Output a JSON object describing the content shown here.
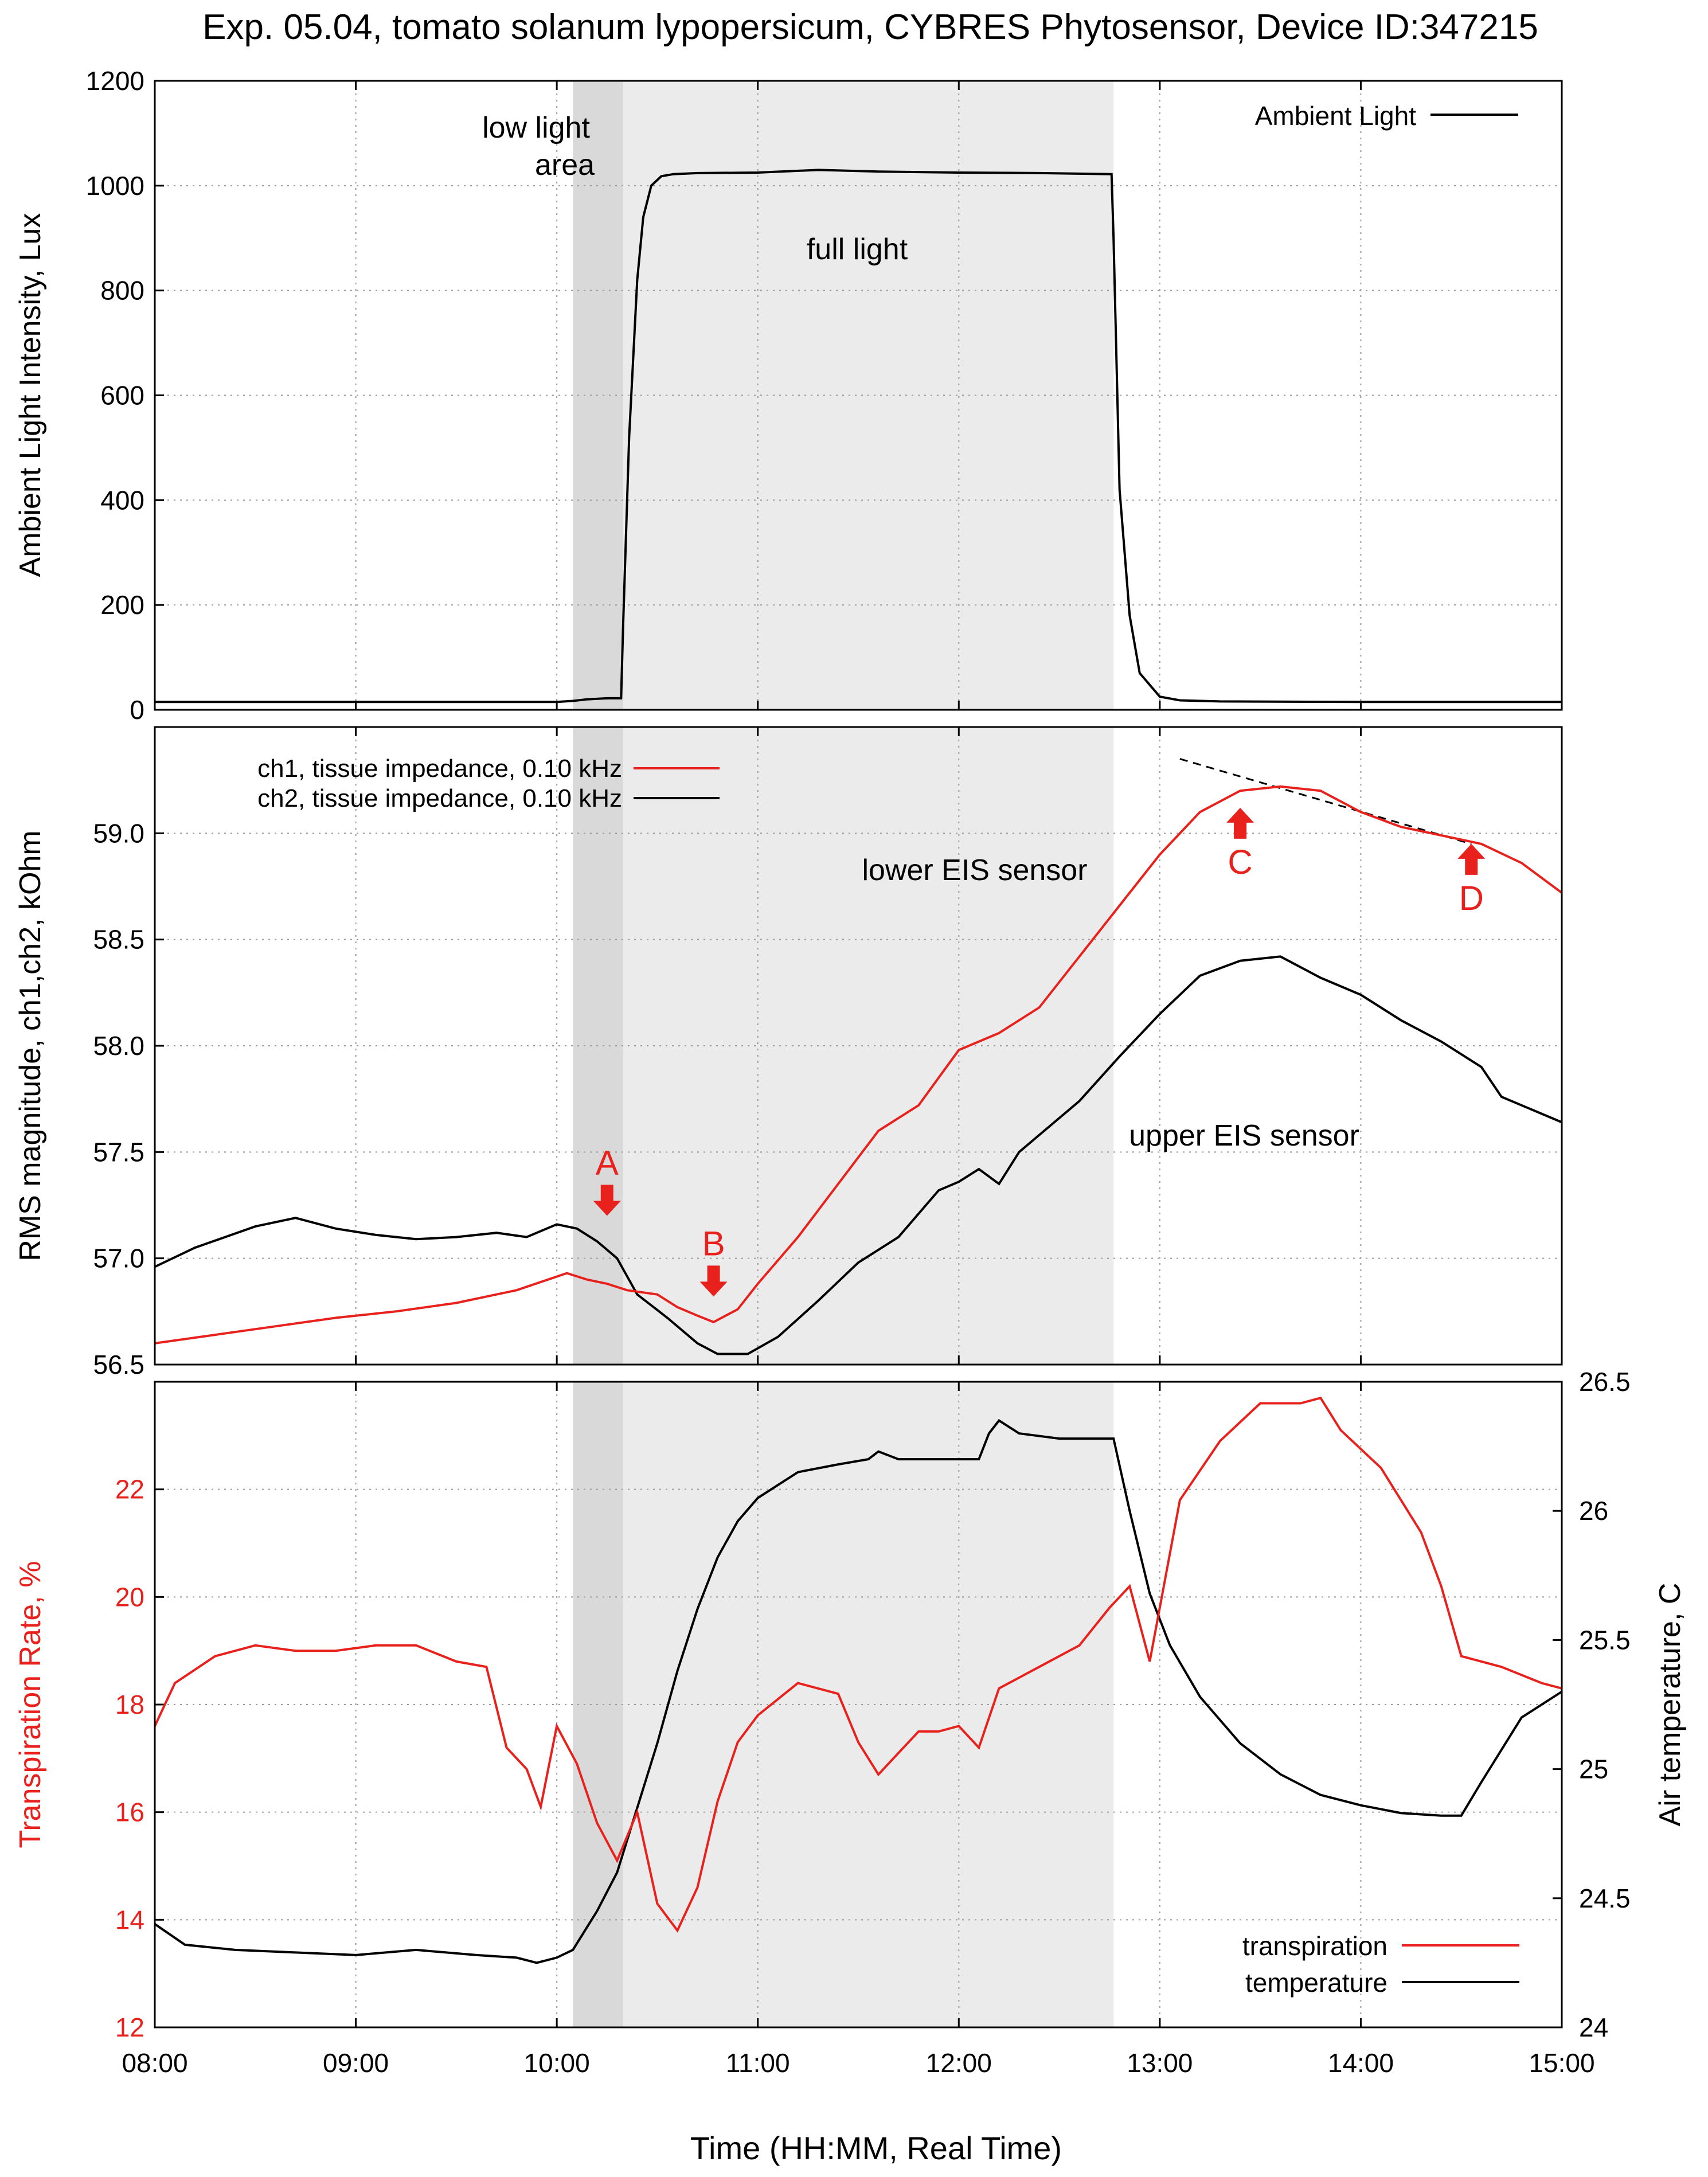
{
  "title": "Exp. 05.04, tomato solanum lypopersicum, CYBRES Phytosensor, Device ID:347215",
  "xlabel": "Time (HH:MM, Real Time)",
  "x_ticks": [
    "08:00",
    "09:00",
    "10:00",
    "11:00",
    "12:00",
    "13:00",
    "14:00",
    "15:00"
  ],
  "shading": {
    "low_light": {
      "from": 10.08,
      "to": 10.33,
      "color": "#d9d9d9"
    },
    "full_light": {
      "from": 10.33,
      "to": 12.77,
      "color": "#ebebeb"
    }
  },
  "chart_data": [
    {
      "type": "line",
      "ylabel": "Ambient Light Intensity, Lux",
      "xlim": [
        8,
        15
      ],
      "ylim": [
        0,
        1200
      ],
      "y_ticks": [
        "0",
        "200",
        "400",
        "600",
        "800",
        "1000",
        "1200"
      ],
      "annotations": {
        "low_light": "low light",
        "area": "area",
        "full_light": "full light"
      },
      "series": [
        {
          "name": "Ambient Light",
          "color": "#000000",
          "x": [
            8.0,
            10.0,
            10.08,
            10.15,
            10.25,
            10.32,
            10.33,
            10.36,
            10.4,
            10.43,
            10.47,
            10.52,
            10.58,
            10.7,
            11.0,
            11.3,
            11.6,
            12.0,
            12.4,
            12.76,
            12.77,
            12.8,
            12.85,
            12.9,
            13.0,
            13.1,
            13.3,
            14.0,
            15.0
          ],
          "y": [
            15,
            15,
            17,
            20,
            22,
            22,
            160,
            520,
            820,
            940,
            1000,
            1018,
            1022,
            1024,
            1025,
            1030,
            1027,
            1025,
            1024,
            1022,
            900,
            420,
            180,
            70,
            25,
            18,
            16,
            15,
            15
          ]
        }
      ]
    },
    {
      "type": "line",
      "ylabel": "RMS magnitude, ch1,ch2, kOhm",
      "xlim": [
        8,
        15
      ],
      "ylim": [
        56.5,
        59.5
      ],
      "y_ticks": [
        "56.5",
        "57.0",
        "57.5",
        "58.0",
        "58.5",
        "59.0"
      ],
      "annotations": {
        "lower": "lower EIS sensor",
        "upper": "upper EIS sensor",
        "markers": [
          {
            "label": "A",
            "x": 10.25,
            "y": 57.2
          },
          {
            "label": "B",
            "x": 10.78,
            "y": 56.82
          },
          {
            "label": "C",
            "x": 13.4,
            "y": 59.12
          },
          {
            "label": "D",
            "x": 14.55,
            "y": 58.95
          }
        ],
        "trend": {
          "x": [
            13.1,
            14.55
          ],
          "y": [
            59.35,
            58.95
          ]
        }
      },
      "series": [
        {
          "name": "ch1, tissue impedance, 0.10 kHz",
          "color": "#e8211d",
          "x": [
            8.0,
            8.3,
            8.6,
            8.9,
            9.2,
            9.5,
            9.8,
            10.05,
            10.15,
            10.25,
            10.35,
            10.5,
            10.6,
            10.7,
            10.78,
            10.9,
            11.0,
            11.2,
            11.4,
            11.6,
            11.8,
            12.0,
            12.2,
            12.4,
            12.6,
            12.8,
            13.0,
            13.2,
            13.4,
            13.6,
            13.8,
            14.0,
            14.2,
            14.4,
            14.6,
            14.8,
            15.0
          ],
          "y": [
            56.6,
            56.64,
            56.68,
            56.72,
            56.75,
            56.79,
            56.85,
            56.93,
            56.9,
            56.88,
            56.85,
            56.83,
            56.77,
            56.73,
            56.7,
            56.76,
            56.88,
            57.1,
            57.35,
            57.6,
            57.72,
            57.98,
            58.06,
            58.18,
            58.42,
            58.66,
            58.9,
            59.1,
            59.2,
            59.22,
            59.2,
            59.1,
            59.03,
            58.99,
            58.95,
            58.86,
            58.72
          ]
        },
        {
          "name": "ch2, tissue impedance, 0.10 kHz",
          "color": "#000000",
          "x": [
            8.0,
            8.2,
            8.5,
            8.7,
            8.9,
            9.1,
            9.3,
            9.5,
            9.7,
            9.85,
            10.0,
            10.1,
            10.2,
            10.3,
            10.4,
            10.55,
            10.7,
            10.8,
            10.95,
            11.1,
            11.3,
            11.5,
            11.7,
            11.9,
            12.0,
            12.1,
            12.2,
            12.3,
            12.45,
            12.6,
            12.8,
            13.0,
            13.2,
            13.4,
            13.6,
            13.8,
            14.0,
            14.2,
            14.4,
            14.6,
            14.7,
            14.8,
            15.0
          ],
          "y": [
            56.96,
            57.05,
            57.15,
            57.19,
            57.14,
            57.11,
            57.09,
            57.1,
            57.12,
            57.1,
            57.16,
            57.14,
            57.08,
            57.0,
            56.83,
            56.72,
            56.6,
            56.55,
            56.55,
            56.63,
            56.8,
            56.98,
            57.1,
            57.32,
            57.36,
            57.42,
            57.35,
            57.5,
            57.62,
            57.74,
            57.95,
            58.15,
            58.33,
            58.4,
            58.42,
            58.32,
            58.24,
            58.12,
            58.02,
            57.9,
            57.76,
            57.72,
            57.64
          ]
        }
      ]
    },
    {
      "type": "line",
      "ylabel": "Transpiration Rate, %",
      "y2label": "Air temperature, C",
      "xlim": [
        8,
        15
      ],
      "ylim": [
        12,
        24
      ],
      "y2lim": [
        24,
        26.5
      ],
      "y_ticks": [
        "12",
        "14",
        "16",
        "18",
        "20",
        "22"
      ],
      "y2_ticks": [
        "24",
        "24.5",
        "25",
        "25.5",
        "26",
        "26.5"
      ],
      "series": [
        {
          "name": "transpiration",
          "color": "#e8211d",
          "axis": "left",
          "x": [
            8.0,
            8.1,
            8.3,
            8.5,
            8.7,
            8.9,
            9.1,
            9.3,
            9.5,
            9.65,
            9.75,
            9.85,
            9.92,
            10.0,
            10.1,
            10.2,
            10.3,
            10.4,
            10.5,
            10.6,
            10.7,
            10.8,
            10.9,
            11.0,
            11.2,
            11.4,
            11.5,
            11.6,
            11.7,
            11.8,
            11.9,
            12.0,
            12.1,
            12.2,
            12.4,
            12.6,
            12.75,
            12.85,
            12.95,
            13.1,
            13.3,
            13.5,
            13.7,
            13.8,
            13.9,
            14.1,
            14.3,
            14.4,
            14.5,
            14.7,
            14.9,
            15.0
          ],
          "y": [
            17.6,
            18.4,
            18.9,
            19.1,
            19.0,
            19.0,
            19.1,
            19.1,
            18.8,
            18.7,
            17.2,
            16.8,
            16.1,
            17.6,
            16.9,
            15.8,
            15.1,
            16.0,
            14.3,
            13.8,
            14.6,
            16.2,
            17.3,
            17.8,
            18.4,
            18.2,
            17.3,
            16.7,
            17.1,
            17.5,
            17.5,
            17.6,
            17.2,
            18.3,
            18.7,
            19.1,
            19.8,
            20.2,
            18.8,
            21.8,
            22.9,
            23.6,
            23.6,
            23.7,
            23.1,
            22.4,
            21.2,
            20.2,
            18.9,
            18.7,
            18.4,
            18.3
          ]
        },
        {
          "name": "temperature",
          "color": "#000000",
          "axis": "right",
          "x": [
            8.0,
            8.15,
            8.4,
            8.7,
            9.0,
            9.3,
            9.6,
            9.8,
            9.9,
            10.0,
            10.08,
            10.2,
            10.3,
            10.4,
            10.5,
            10.6,
            10.7,
            10.8,
            10.9,
            11.0,
            11.2,
            11.4,
            11.55,
            11.6,
            11.7,
            12.0,
            12.1,
            12.15,
            12.2,
            12.3,
            12.5,
            12.77,
            12.85,
            12.95,
            13.05,
            13.2,
            13.4,
            13.6,
            13.8,
            14.0,
            14.2,
            14.4,
            14.5,
            14.6,
            14.8,
            15.0
          ],
          "y": [
            24.4,
            24.32,
            24.3,
            24.29,
            24.28,
            24.3,
            24.28,
            24.27,
            24.25,
            24.27,
            24.3,
            24.45,
            24.6,
            24.85,
            25.1,
            25.38,
            25.62,
            25.82,
            25.96,
            26.05,
            26.15,
            26.18,
            26.2,
            26.23,
            26.2,
            26.2,
            26.2,
            26.3,
            26.35,
            26.3,
            26.28,
            26.28,
            26.0,
            25.68,
            25.48,
            25.28,
            25.1,
            24.98,
            24.9,
            24.86,
            24.83,
            24.82,
            24.82,
            24.95,
            25.2,
            25.3
          ]
        }
      ]
    }
  ]
}
